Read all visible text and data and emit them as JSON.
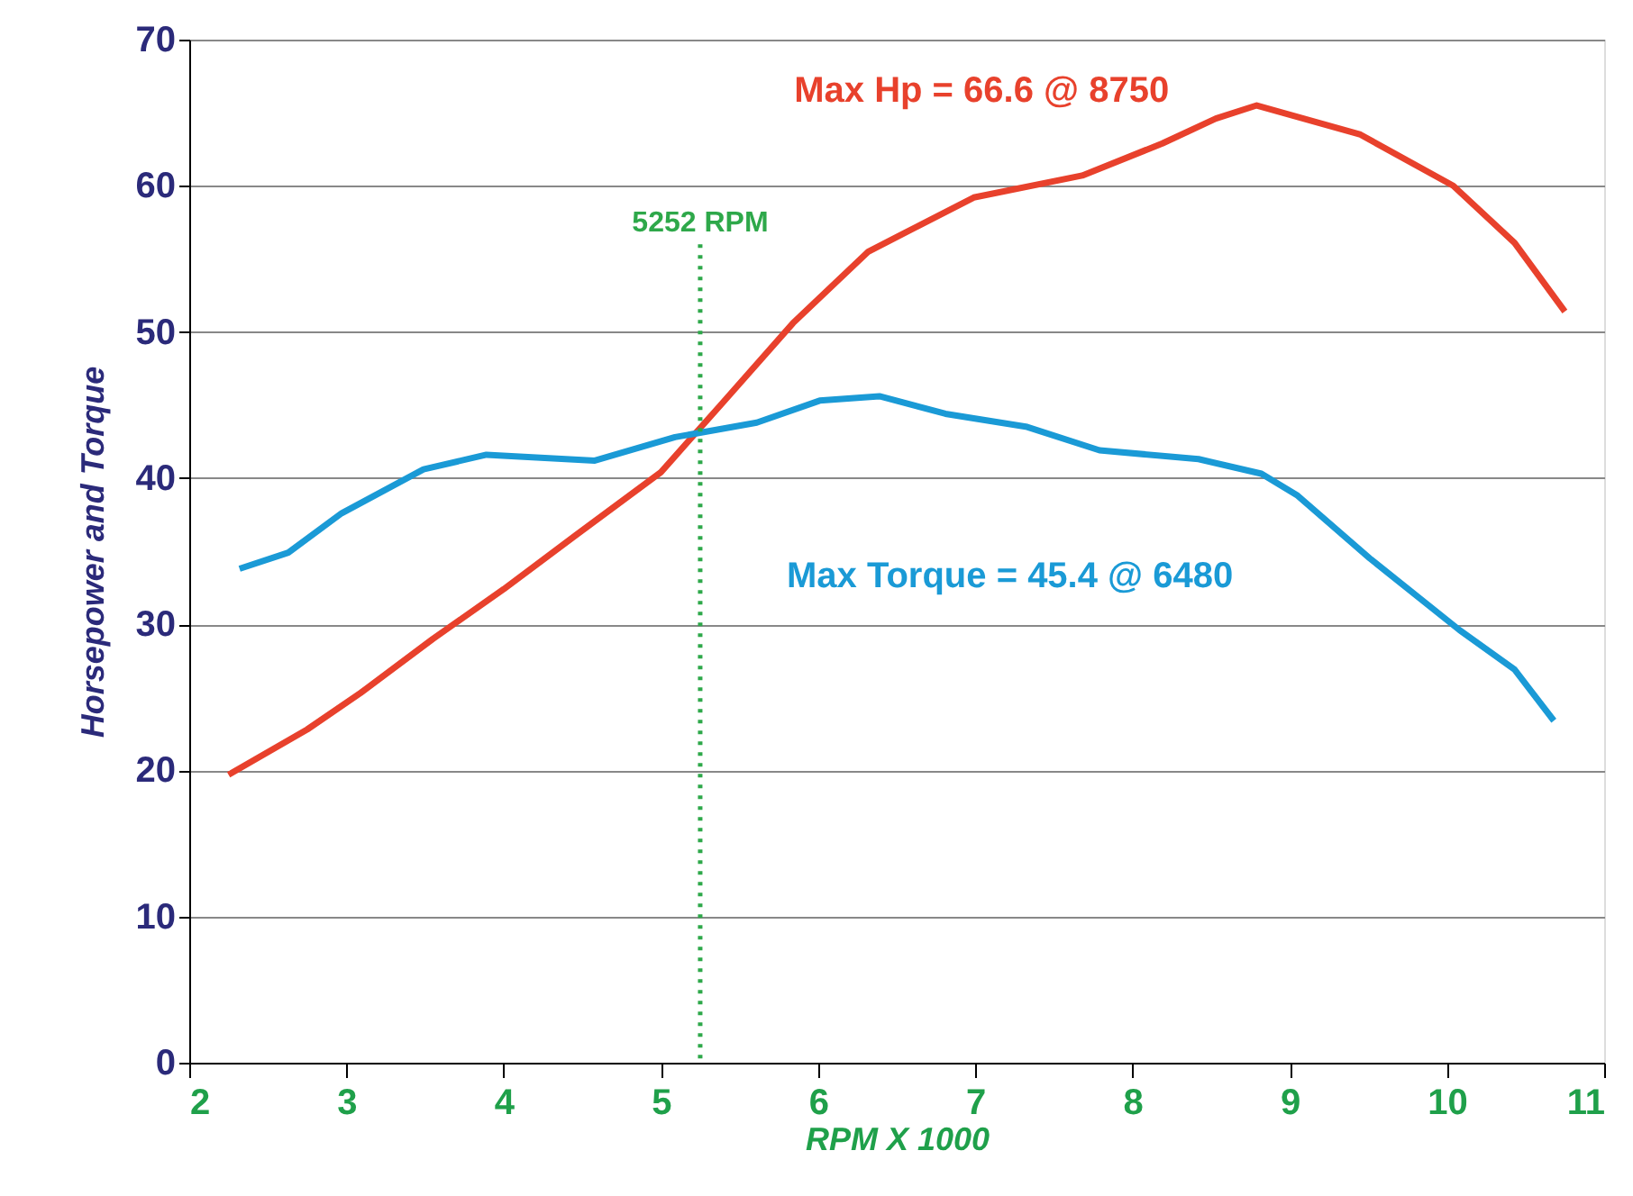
{
  "chart_data": {
    "type": "line",
    "xlabel": "RPM X 1000",
    "ylabel": "Horsepower and Torque",
    "xlim": [
      2,
      11
    ],
    "xticks": [
      2,
      3,
      4,
      5,
      6,
      7,
      8,
      9,
      10,
      11
    ],
    "ylim": [
      0,
      70
    ],
    "yticks": [
      0,
      10,
      20,
      30,
      40,
      50,
      60,
      70
    ],
    "grid": "y",
    "marker": "none",
    "line_style": "solid",
    "series": [
      {
        "color": "#e8412c",
        "x": [
          2.25,
          2.75,
          3.09,
          3.55,
          4.0,
          4.46,
          5.0,
          5.38,
          5.84,
          6.32,
          6.99,
          7.68,
          8.19,
          8.53,
          8.79,
          9.45,
          10.04,
          10.43,
          10.75
        ],
        "values": [
          19.7,
          22.8,
          25.3,
          29.0,
          32.4,
          36.1,
          40.4,
          45.0,
          50.6,
          55.5,
          59.2,
          60.7,
          62.9,
          64.6,
          65.5,
          63.5,
          60.0,
          56.1,
          51.4
        ]
      },
      {
        "color": "#1a9ad6",
        "x": [
          2.32,
          2.63,
          2.97,
          3.49,
          3.89,
          4.58,
          5.09,
          5.61,
          6.01,
          6.39,
          6.81,
          7.33,
          7.79,
          8.42,
          8.82,
          9.05,
          9.51,
          10.08,
          10.43,
          10.68
        ],
        "values": [
          33.8,
          34.9,
          37.6,
          40.6,
          41.6,
          41.2,
          42.8,
          43.8,
          45.3,
          45.6,
          44.4,
          43.5,
          41.9,
          41.3,
          40.3,
          38.8,
          34.5,
          29.6,
          26.9,
          23.4
        ]
      }
    ],
    "ref_lines": [
      {
        "axis": "x",
        "value": 5.25,
        "label": "5252 RPM",
        "color": "#2ea84a",
        "line_style": "dotted"
      }
    ],
    "annotations": [
      "Max Hp = 66.6 @ 8750",
      "Max Torque = 45.4 @ 6480"
    ]
  }
}
